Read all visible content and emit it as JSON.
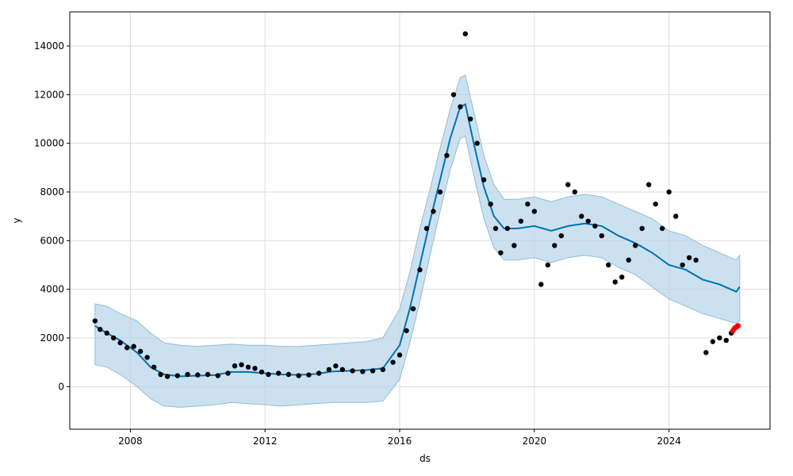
{
  "chart_data": {
    "type": "scatter",
    "xlabel": "ds",
    "ylabel": "y",
    "xlim": [
      2006.2,
      2027.0
    ],
    "ylim": [
      -1750,
      15400
    ],
    "x_ticks": [
      {
        "value": 2008,
        "label": "2008"
      },
      {
        "value": 2012,
        "label": "2012"
      },
      {
        "value": 2016,
        "label": "2016"
      },
      {
        "value": 2020,
        "label": "2020"
      },
      {
        "value": 2024,
        "label": "2024"
      }
    ],
    "y_ticks": [
      {
        "value": 0,
        "label": "0"
      },
      {
        "value": 2000,
        "label": "2000"
      },
      {
        "value": 4000,
        "label": "4000"
      },
      {
        "value": 6000,
        "label": "6000"
      },
      {
        "value": 8000,
        "label": "8000"
      },
      {
        "value": 10000,
        "label": "10000"
      },
      {
        "value": 12000,
        "label": "12000"
      },
      {
        "value": 14000,
        "label": "14000"
      }
    ],
    "grid": true,
    "colors": {
      "observed": "#000000",
      "forecast_line": "#0072b2",
      "uncertainty_fill": "#b7d4ea",
      "uncertainty_edge": "#8fbcdc",
      "highlight": "#ff0000"
    },
    "observed": [
      [
        2006.95,
        2700
      ],
      [
        2007.1,
        2350
      ],
      [
        2007.3,
        2200
      ],
      [
        2007.5,
        2000
      ],
      [
        2007.7,
        1800
      ],
      [
        2007.9,
        1600
      ],
      [
        2008.1,
        1650
      ],
      [
        2008.3,
        1450
      ],
      [
        2008.5,
        1200
      ],
      [
        2008.7,
        800
      ],
      [
        2008.9,
        500
      ],
      [
        2009.1,
        420
      ],
      [
        2009.4,
        450
      ],
      [
        2009.7,
        500
      ],
      [
        2010.0,
        480
      ],
      [
        2010.3,
        500
      ],
      [
        2010.6,
        450
      ],
      [
        2010.9,
        550
      ],
      [
        2011.1,
        850
      ],
      [
        2011.3,
        900
      ],
      [
        2011.5,
        800
      ],
      [
        2011.7,
        750
      ],
      [
        2011.9,
        600
      ],
      [
        2012.1,
        500
      ],
      [
        2012.4,
        550
      ],
      [
        2012.7,
        500
      ],
      [
        2013.0,
        450
      ],
      [
        2013.3,
        480
      ],
      [
        2013.6,
        550
      ],
      [
        2013.9,
        700
      ],
      [
        2014.1,
        850
      ],
      [
        2014.3,
        700
      ],
      [
        2014.6,
        650
      ],
      [
        2014.9,
        620
      ],
      [
        2015.2,
        650
      ],
      [
        2015.5,
        700
      ],
      [
        2015.8,
        1000
      ],
      [
        2016.0,
        1300
      ],
      [
        2016.2,
        2300
      ],
      [
        2016.4,
        3200
      ],
      [
        2016.6,
        4800
      ],
      [
        2016.8,
        6500
      ],
      [
        2017.0,
        7200
      ],
      [
        2017.2,
        8000
      ],
      [
        2017.4,
        9500
      ],
      [
        2017.6,
        12000
      ],
      [
        2017.8,
        11500
      ],
      [
        2017.95,
        14500
      ],
      [
        2018.1,
        11000
      ],
      [
        2018.3,
        10000
      ],
      [
        2018.5,
        8500
      ],
      [
        2018.7,
        7500
      ],
      [
        2018.85,
        6500
      ],
      [
        2019.0,
        5500
      ],
      [
        2019.2,
        6500
      ],
      [
        2019.4,
        5800
      ],
      [
        2019.6,
        6800
      ],
      [
        2019.8,
        7500
      ],
      [
        2020.0,
        7200
      ],
      [
        2020.2,
        4200
      ],
      [
        2020.4,
        5000
      ],
      [
        2020.6,
        5800
      ],
      [
        2020.8,
        6200
      ],
      [
        2021.0,
        8300
      ],
      [
        2021.2,
        8000
      ],
      [
        2021.4,
        7000
      ],
      [
        2021.6,
        6800
      ],
      [
        2021.8,
        6600
      ],
      [
        2022.0,
        6200
      ],
      [
        2022.2,
        5000
      ],
      [
        2022.4,
        4300
      ],
      [
        2022.6,
        4500
      ],
      [
        2022.8,
        5200
      ],
      [
        2023.0,
        5800
      ],
      [
        2023.2,
        6500
      ],
      [
        2023.4,
        8300
      ],
      [
        2023.6,
        7500
      ],
      [
        2023.8,
        6500
      ],
      [
        2024.0,
        8000
      ],
      [
        2024.2,
        7000
      ],
      [
        2024.4,
        5000
      ],
      [
        2024.6,
        5300
      ],
      [
        2024.8,
        5200
      ],
      [
        2025.1,
        1400
      ],
      [
        2025.3,
        1850
      ],
      [
        2025.5,
        2000
      ],
      [
        2025.7,
        1900
      ],
      [
        2025.85,
        2200
      ]
    ],
    "highlight_points": [
      [
        2025.9,
        2300
      ],
      [
        2025.95,
        2400
      ],
      [
        2026.0,
        2450
      ],
      [
        2026.05,
        2500
      ]
    ],
    "forecast": [
      [
        2006.95,
        2500
      ],
      [
        2007.3,
        2200
      ],
      [
        2007.7,
        1900
      ],
      [
        2008.2,
        1400
      ],
      [
        2008.6,
        800
      ],
      [
        2009.0,
        500
      ],
      [
        2009.5,
        420
      ],
      [
        2010.0,
        450
      ],
      [
        2010.5,
        470
      ],
      [
        2011.0,
        600
      ],
      [
        2011.5,
        600
      ],
      [
        2012.0,
        550
      ],
      [
        2012.5,
        500
      ],
      [
        2013.0,
        480
      ],
      [
        2013.5,
        520
      ],
      [
        2014.0,
        620
      ],
      [
        2014.5,
        650
      ],
      [
        2015.0,
        680
      ],
      [
        2015.5,
        750
      ],
      [
        2016.0,
        1700
      ],
      [
        2016.3,
        3200
      ],
      [
        2016.6,
        5000
      ],
      [
        2016.9,
        6800
      ],
      [
        2017.2,
        8500
      ],
      [
        2017.5,
        10200
      ],
      [
        2017.8,
        11500
      ],
      [
        2017.95,
        11600
      ],
      [
        2018.2,
        10000
      ],
      [
        2018.5,
        8200
      ],
      [
        2018.8,
        7000
      ],
      [
        2019.1,
        6500
      ],
      [
        2019.5,
        6500
      ],
      [
        2020.0,
        6600
      ],
      [
        2020.5,
        6400
      ],
      [
        2021.0,
        6600
      ],
      [
        2021.5,
        6700
      ],
      [
        2022.0,
        6600
      ],
      [
        2022.5,
        6200
      ],
      [
        2023.0,
        5900
      ],
      [
        2023.5,
        5500
      ],
      [
        2024.0,
        5000
      ],
      [
        2024.5,
        4800
      ],
      [
        2025.0,
        4400
      ],
      [
        2025.5,
        4200
      ],
      [
        2026.0,
        3900
      ],
      [
        2026.1,
        4100
      ]
    ],
    "upper": [
      [
        2006.95,
        3400
      ],
      [
        2007.3,
        3300
      ],
      [
        2007.7,
        3000
      ],
      [
        2008.2,
        2700
      ],
      [
        2008.6,
        2200
      ],
      [
        2009.0,
        1800
      ],
      [
        2009.5,
        1700
      ],
      [
        2010.0,
        1650
      ],
      [
        2010.5,
        1700
      ],
      [
        2011.0,
        1750
      ],
      [
        2011.5,
        1700
      ],
      [
        2012.0,
        1700
      ],
      [
        2012.5,
        1650
      ],
      [
        2013.0,
        1650
      ],
      [
        2013.5,
        1700
      ],
      [
        2014.0,
        1750
      ],
      [
        2014.5,
        1800
      ],
      [
        2015.0,
        1850
      ],
      [
        2015.5,
        2000
      ],
      [
        2016.0,
        3200
      ],
      [
        2016.3,
        4700
      ],
      [
        2016.6,
        6500
      ],
      [
        2016.9,
        8100
      ],
      [
        2017.2,
        9800
      ],
      [
        2017.5,
        11400
      ],
      [
        2017.8,
        12700
      ],
      [
        2017.95,
        12800
      ],
      [
        2018.2,
        11300
      ],
      [
        2018.5,
        9500
      ],
      [
        2018.8,
        8300
      ],
      [
        2019.1,
        7700
      ],
      [
        2019.5,
        7700
      ],
      [
        2020.0,
        7800
      ],
      [
        2020.5,
        7600
      ],
      [
        2021.0,
        7800
      ],
      [
        2021.5,
        7900
      ],
      [
        2022.0,
        7800
      ],
      [
        2022.5,
        7500
      ],
      [
        2023.0,
        7200
      ],
      [
        2023.5,
        6900
      ],
      [
        2024.0,
        6400
      ],
      [
        2024.5,
        6200
      ],
      [
        2025.0,
        5800
      ],
      [
        2025.5,
        5500
      ],
      [
        2026.0,
        5200
      ],
      [
        2026.1,
        5400
      ]
    ],
    "lower": [
      [
        2006.95,
        900
      ],
      [
        2007.3,
        800
      ],
      [
        2007.7,
        500
      ],
      [
        2008.2,
        0
      ],
      [
        2008.6,
        -500
      ],
      [
        2009.0,
        -800
      ],
      [
        2009.5,
        -850
      ],
      [
        2010.0,
        -800
      ],
      [
        2010.5,
        -750
      ],
      [
        2011.0,
        -650
      ],
      [
        2011.5,
        -700
      ],
      [
        2012.0,
        -750
      ],
      [
        2012.5,
        -800
      ],
      [
        2013.0,
        -750
      ],
      [
        2013.5,
        -700
      ],
      [
        2014.0,
        -650
      ],
      [
        2014.5,
        -650
      ],
      [
        2015.0,
        -650
      ],
      [
        2015.5,
        -600
      ],
      [
        2016.0,
        300
      ],
      [
        2016.3,
        1800
      ],
      [
        2016.6,
        3500
      ],
      [
        2016.9,
        5400
      ],
      [
        2017.2,
        7200
      ],
      [
        2017.5,
        8900
      ],
      [
        2017.8,
        10200
      ],
      [
        2017.95,
        10300
      ],
      [
        2018.2,
        8700
      ],
      [
        2018.5,
        6900
      ],
      [
        2018.8,
        5700
      ],
      [
        2019.1,
        5200
      ],
      [
        2019.5,
        5200
      ],
      [
        2020.0,
        5300
      ],
      [
        2020.5,
        5100
      ],
      [
        2021.0,
        5300
      ],
      [
        2021.5,
        5400
      ],
      [
        2022.0,
        5300
      ],
      [
        2022.5,
        4900
      ],
      [
        2023.0,
        4600
      ],
      [
        2023.5,
        4100
      ],
      [
        2024.0,
        3600
      ],
      [
        2024.5,
        3300
      ],
      [
        2025.0,
        3000
      ],
      [
        2025.5,
        2800
      ],
      [
        2026.0,
        2600
      ],
      [
        2026.1,
        2700
      ]
    ]
  }
}
